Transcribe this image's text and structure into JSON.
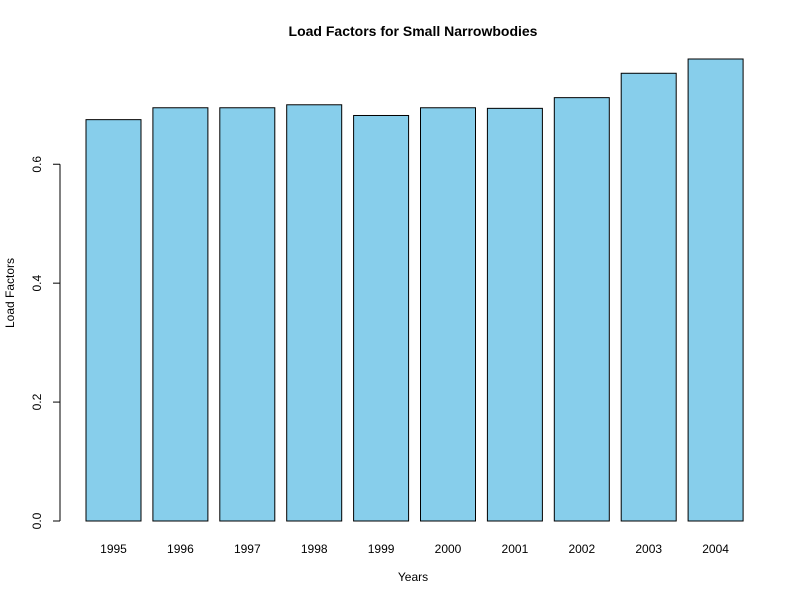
{
  "chart_data": {
    "type": "bar",
    "title": "Load Factors for Small Narrowbodies",
    "xlabel": "Years",
    "ylabel": "Load Factors",
    "categories": [
      "1995",
      "1996",
      "1997",
      "1998",
      "1999",
      "2000",
      "2001",
      "2002",
      "2003",
      "2004"
    ],
    "values": [
      0.675,
      0.695,
      0.695,
      0.7,
      0.682,
      0.695,
      0.694,
      0.712,
      0.753,
      0.777
    ],
    "ylim": [
      0,
      0.777
    ],
    "yticks": [
      0.0,
      0.2,
      0.4,
      0.6
    ],
    "ytick_labels": [
      "0.0",
      "0.2",
      "0.4",
      "0.6"
    ],
    "grid": false,
    "legend": "none",
    "bar_color": "#87CEEB",
    "bar_border_color": "#000000"
  }
}
